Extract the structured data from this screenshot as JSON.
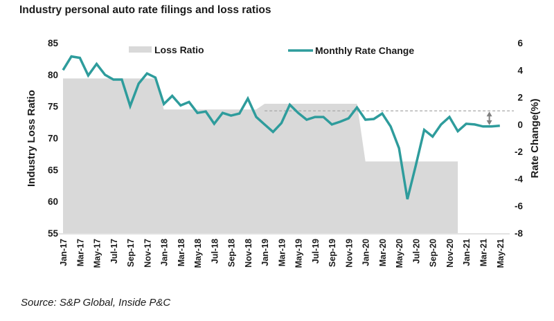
{
  "chart_data": {
    "type": "line",
    "title": "Industry personal auto rate filings and loss ratios",
    "source": "Source: S&P Global, Inside P&C",
    "x": [
      "Jan-17",
      "Feb-17",
      "Mar-17",
      "Apr-17",
      "May-17",
      "Jun-17",
      "Jul-17",
      "Aug-17",
      "Sep-17",
      "Oct-17",
      "Nov-17",
      "Dec-17",
      "Jan-18",
      "Feb-18",
      "Mar-18",
      "Apr-18",
      "May-18",
      "Jun-18",
      "Jul-18",
      "Aug-18",
      "Sep-18",
      "Oct-18",
      "Nov-18",
      "Dec-18",
      "Jan-19",
      "Feb-19",
      "Mar-19",
      "Apr-19",
      "May-19",
      "Jun-19",
      "Jul-19",
      "Aug-19",
      "Sep-19",
      "Oct-19",
      "Nov-19",
      "Dec-19",
      "Jan-20",
      "Feb-20",
      "Mar-20",
      "Apr-20",
      "May-20",
      "Jun-20",
      "Jul-20",
      "Aug-20",
      "Sep-20",
      "Oct-20",
      "Nov-20",
      "Dec-20",
      "Jan-21",
      "Feb-21",
      "Mar-21",
      "Apr-21",
      "May-21"
    ],
    "x_tick_labels": [
      "Jan-17",
      "Mar-17",
      "May-17",
      "Jul-17",
      "Sep-17",
      "Nov-17",
      "Jan-18",
      "Mar-18",
      "May-18",
      "Jul-18",
      "Sep-18",
      "Nov-18",
      "Jan-19",
      "Mar-19",
      "May-19",
      "Jul-19",
      "Sep-19",
      "Nov-19",
      "Jan-20",
      "Mar-20",
      "May-20",
      "Jul-20",
      "Sep-20",
      "Nov-20",
      "Jan-21",
      "Mar-21",
      "May-21"
    ],
    "series": [
      {
        "name": "Loss Ratio",
        "type": "area",
        "axis": "left",
        "color": "#d9d9d9",
        "values": [
          79.4,
          79.4,
          79.4,
          79.4,
          79.4,
          79.4,
          79.4,
          79.4,
          79.4,
          79.4,
          79.4,
          79.4,
          74.5,
          74.5,
          74.5,
          74.5,
          74.5,
          74.5,
          74.5,
          74.5,
          74.5,
          74.5,
          74.5,
          74.5,
          75.4,
          75.4,
          75.4,
          75.4,
          75.4,
          75.4,
          75.4,
          75.4,
          75.4,
          75.4,
          75.4,
          75.4,
          66.3,
          66.3,
          66.3,
          66.3,
          66.3,
          66.3,
          66.3,
          66.3,
          66.3,
          66.3,
          66.3,
          66.3,
          null,
          null,
          null,
          null,
          null
        ]
      },
      {
        "name": "Monthly Rate Change",
        "type": "line",
        "axis": "right",
        "color": "#2e9c9c",
        "values": [
          4.0,
          5.0,
          4.9,
          3.6,
          4.45,
          3.65,
          3.3,
          3.3,
          1.35,
          3.0,
          3.75,
          3.45,
          1.5,
          2.1,
          1.4,
          1.65,
          0.85,
          0.95,
          0.05,
          0.85,
          0.65,
          0.8,
          1.9,
          0.55,
          0.0,
          -0.55,
          0.1,
          1.45,
          0.85,
          0.35,
          0.55,
          0.55,
          0.0,
          0.2,
          0.45,
          1.25,
          0.35,
          0.4,
          0.8,
          -0.15,
          -1.75,
          -5.5,
          -3.0,
          -0.4,
          -0.9,
          0.0,
          0.55,
          -0.5,
          0.05,
          0.0,
          -0.15,
          -0.15,
          -0.1
        ]
      }
    ],
    "y_left": {
      "label": "Industry Loss Ratio",
      "ylim": [
        55,
        85
      ],
      "ticks": [
        "85",
        "80",
        "75",
        "70",
        "65",
        "60",
        "55"
      ],
      "tick_values": [
        85,
        80,
        75,
        70,
        65,
        60,
        55
      ]
    },
    "y_right": {
      "label": "Rate Change(%)",
      "ylim": [
        -8,
        6
      ],
      "ticks": [
        "6",
        "4",
        "2",
        "0",
        "-2",
        "-4",
        "-6",
        "-8"
      ],
      "tick_values": [
        6,
        4,
        2,
        0,
        -2,
        -4,
        -6,
        -8
      ]
    },
    "annotations": [
      {
        "type": "dashed-reference-line",
        "axis": "right",
        "value": 1.0,
        "from": "Jan-19",
        "color": "#a6a6a6"
      },
      {
        "type": "double-arrow",
        "axis": "right",
        "at": "Apr-21",
        "from_value": 1.0,
        "to_value": -0.1,
        "color": "#808080"
      }
    ],
    "legend": {
      "placement": "top",
      "items": [
        "Loss Ratio",
        "Monthly Rate Change"
      ]
    },
    "grid": false
  }
}
